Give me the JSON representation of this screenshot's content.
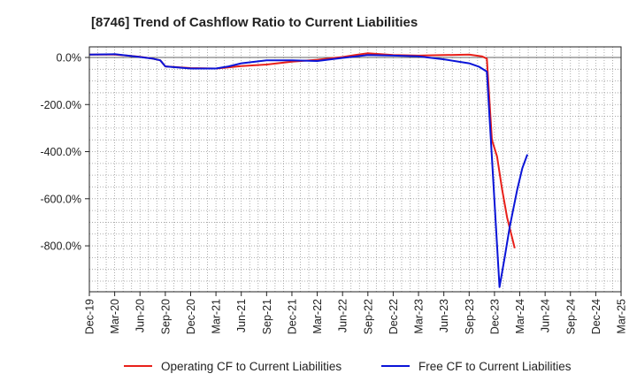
{
  "chart_data": {
    "type": "line",
    "title": "[8746]  Trend of Cashflow Ratio to Current Liabilities",
    "xlabel": "",
    "ylabel": "",
    "ylim": [
      -995,
      45
    ],
    "yticks": [
      0,
      -200,
      -400,
      -600,
      -800
    ],
    "y_tick_labels": [
      "0.0%",
      "-200.0%",
      "-400.0%",
      "-600.0%",
      "-800.0%"
    ],
    "x_tick_labels": [
      "Dec-19",
      "Mar-20",
      "Jun-20",
      "Sep-20",
      "Dec-20",
      "Mar-21",
      "Jun-21",
      "Sep-21",
      "Dec-21",
      "Mar-22",
      "Jun-22",
      "Sep-22",
      "Dec-22",
      "Mar-23",
      "Jun-23",
      "Sep-23",
      "Dec-23",
      "Mar-24",
      "Jun-24",
      "Sep-24",
      "Dec-24",
      "Mar-25"
    ],
    "grid": true,
    "legend_position": "bottom",
    "series": [
      {
        "name": "Operating CF to Current Liabilities",
        "color": "#e8201a",
        "points": [
          [
            0,
            12
          ],
          [
            1,
            12
          ],
          [
            1.5,
            8
          ],
          [
            2,
            3
          ],
          [
            2.5,
            -5
          ],
          [
            2.8,
            -12
          ],
          [
            3,
            -38
          ],
          [
            4,
            -45
          ],
          [
            5,
            -47
          ],
          [
            6,
            -37
          ],
          [
            7,
            -30
          ],
          [
            8,
            -18
          ],
          [
            9,
            -10
          ],
          [
            10,
            2
          ],
          [
            10.5,
            10
          ],
          [
            11,
            18
          ],
          [
            12,
            10
          ],
          [
            13,
            8
          ],
          [
            14,
            10
          ],
          [
            15,
            12
          ],
          [
            15.5,
            5
          ],
          [
            15.7,
            -5
          ],
          [
            15.9,
            -350
          ],
          [
            16.1,
            -420
          ],
          [
            16.3,
            -560
          ],
          [
            16.5,
            -680
          ],
          [
            16.8,
            -810
          ]
        ]
      },
      {
        "name": "Free CF to Current Liabilities",
        "color": "#0a14d8",
        "points": [
          [
            0,
            12
          ],
          [
            1,
            14
          ],
          [
            1.5,
            8
          ],
          [
            2,
            2
          ],
          [
            2.5,
            -5
          ],
          [
            2.8,
            -12
          ],
          [
            3,
            -38
          ],
          [
            4,
            -47
          ],
          [
            5,
            -47
          ],
          [
            5.5,
            -38
          ],
          [
            6,
            -25
          ],
          [
            7,
            -12
          ],
          [
            8,
            -12
          ],
          [
            9,
            -15
          ],
          [
            10,
            -2
          ],
          [
            11,
            10
          ],
          [
            12,
            8
          ],
          [
            13,
            5
          ],
          [
            14,
            -8
          ],
          [
            15,
            -25
          ],
          [
            15.4,
            -40
          ],
          [
            15.7,
            -60
          ],
          [
            16.2,
            -975
          ],
          [
            16.4,
            -850
          ],
          [
            16.6,
            -720
          ],
          [
            16.9,
            -560
          ],
          [
            17.1,
            -470
          ],
          [
            17.3,
            -412
          ]
        ]
      }
    ]
  },
  "legend": [
    {
      "label": "Operating CF to Current Liabilities",
      "color": "#e8201a"
    },
    {
      "label": "Free CF to Current Liabilities",
      "color": "#0a14d8"
    }
  ]
}
